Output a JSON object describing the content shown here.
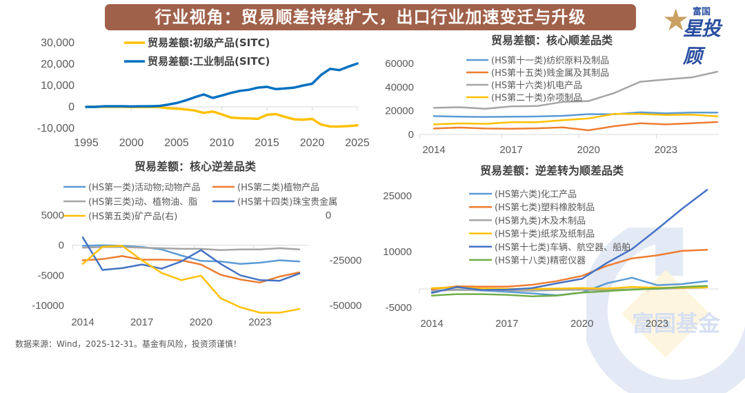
{
  "header": {
    "title": "行业视角：贸易顺差持续扩大，出口行业加速变迁与升级",
    "logo_small": "富国",
    "logo_big": "星投顾",
    "logo_icon": "star-icon"
  },
  "watermark": {
    "text": "富国基金",
    "icon": "fuguo-logo-watermark"
  },
  "footer": {
    "source": "数据来源：Wind，2025-12-31。基金有风险，投资须谨慎！"
  },
  "colors": {
    "banner": "#a0614a",
    "logo_gold": "#c9a063",
    "logo_blue": "#2a4fa0"
  },
  "chart_data": [
    {
      "id": "c1",
      "type": "line",
      "title": "",
      "xlabel": "",
      "ylabel": "",
      "x": [
        1995,
        1996,
        1997,
        1998,
        1999,
        2000,
        2001,
        2002,
        2003,
        2004,
        2005,
        2006,
        2007,
        2008,
        2009,
        2010,
        2011,
        2012,
        2013,
        2014,
        2015,
        2016,
        2017,
        2018,
        2019,
        2020,
        2021,
        2022,
        2023,
        2024,
        2025
      ],
      "xticks": [
        1995,
        2000,
        2005,
        2010,
        2015,
        2020,
        2025
      ],
      "xtick_labels": [
        "1995",
        "2000",
        "2005",
        "2010",
        "2015",
        "2020",
        "2025"
      ],
      "xlim": [
        1995,
        2025.5
      ],
      "ylim": [
        -10000,
        30000
      ],
      "yticks": [
        30000,
        20000,
        10000,
        0,
        -10000
      ],
      "ytick_labels": [
        "30,000",
        "20,000",
        "10,000",
        "0",
        "-10,000"
      ],
      "grid": false,
      "legend": "top-center",
      "series": [
        {
          "name": "贸易差额:初级产品(SITC)",
          "color": "#ffc000",
          "values": [
            0,
            0,
            0,
            0,
            0,
            -100,
            -100,
            -100,
            -100,
            -600,
            -800,
            -1200,
            -1700,
            -2800,
            -2200,
            -3500,
            -5000,
            -5300,
            -5400,
            -5600,
            -3700,
            -3400,
            -4700,
            -5800,
            -6000,
            -5600,
            -8300,
            -9200,
            -9200,
            -9000,
            -8600
          ]
        },
        {
          "name": "贸易差额:工业制品(SITC)",
          "color": "#0070c0",
          "values": [
            0,
            0,
            300,
            300,
            300,
            200,
            300,
            300,
            400,
            1000,
            1800,
            3000,
            4500,
            5800,
            4200,
            5300,
            6500,
            7500,
            8000,
            9000,
            9400,
            8300,
            8600,
            9000,
            10000,
            10800,
            15000,
            17800,
            17200,
            18800,
            20300
          ]
        }
      ]
    },
    {
      "id": "c2",
      "type": "line",
      "title": "贸易差额：核心顺差品类",
      "xlabel": "",
      "ylabel": "",
      "x": [
        2014,
        2015,
        2016,
        2017,
        2018,
        2019,
        2020,
        2021,
        2022,
        2023,
        2024,
        2025
      ],
      "xticks": [
        2014,
        2017,
        2020,
        2023
      ],
      "xtick_labels": [
        "2014",
        "2017",
        "2020",
        "2023"
      ],
      "xlim": [
        2013.9,
        2026
      ],
      "ylim": [
        0,
        60000
      ],
      "yticks": [
        60000,
        40000,
        20000,
        0
      ],
      "ytick_labels": [
        "60000",
        "40000",
        "20000",
        "0"
      ],
      "grid": false,
      "legend": "top-center",
      "series": [
        {
          "name": "(HS第十一类)纺织原料及制品",
          "color": "#5b9bd5",
          "values": [
            15500,
            15000,
            14800,
            15000,
            15200,
            15700,
            17200,
            17000,
            18700,
            17800,
            18500,
            18500
          ]
        },
        {
          "name": "(HS第十五类)贱金属及其制品",
          "color": "#ed7d31",
          "values": [
            5000,
            5800,
            5000,
            4800,
            5200,
            6000,
            3500,
            7000,
            9500,
            8500,
            9500,
            10500
          ]
        },
        {
          "name": "(HS第十六类)机电产品",
          "color": "#a5a5a5",
          "values": [
            22500,
            23000,
            21700,
            23700,
            24000,
            27500,
            28200,
            35000,
            44500,
            46500,
            48200,
            53000
          ]
        },
        {
          "name": "(HS第二十类)杂项制品",
          "color": "#ffc000",
          "values": [
            8500,
            9300,
            9000,
            10300,
            10300,
            12000,
            13500,
            17300,
            17300,
            16500,
            16700,
            15300
          ]
        }
      ]
    },
    {
      "id": "c3",
      "type": "line",
      "title": "贸易差额：核心逆差品类",
      "xlabel": "",
      "ylabel": "",
      "x": [
        2014,
        2015,
        2016,
        2017,
        2018,
        2019,
        2020,
        2021,
        2022,
        2023,
        2024,
        2025
      ],
      "xticks": [
        2014,
        2017,
        2020,
        2023
      ],
      "xtick_labels": [
        "2014",
        "2017",
        "2020",
        "2023"
      ],
      "xlim": [
        2013.8,
        2025.7
      ],
      "ylim": [
        -10000,
        5000
      ],
      "yticks": [
        5000,
        0,
        -5000,
        -10000
      ],
      "ytick_labels": [
        "5000",
        "0",
        "-5000",
        "-10000"
      ],
      "y2lim": [
        -50000,
        0
      ],
      "y2ticks": [
        0,
        -25000,
        -50000
      ],
      "y2tick_labels": [
        "0",
        "-25000",
        "-50000"
      ],
      "grid": false,
      "legend": "top",
      "series": [
        {
          "name": "(HS第一类)活动物;动物产品",
          "color": "#5b9bd5",
          "axis": "left",
          "values": [
            -100,
            0,
            -100,
            -300,
            -700,
            -1700,
            -2600,
            -2700,
            -3100,
            -2900,
            -2500,
            -2700
          ]
        },
        {
          "name": "(HS第二类)植物产品",
          "color": "#ed7d31",
          "axis": "left",
          "values": [
            -2500,
            -2300,
            -1800,
            -2400,
            -2400,
            -2500,
            -3200,
            -4900,
            -5700,
            -6200,
            -5200,
            -4500
          ]
        },
        {
          "name": "(HS第三类)动、植物油、脂",
          "color": "#a5a5a5",
          "axis": "left",
          "values": [
            -400,
            -300,
            -300,
            -400,
            -500,
            -600,
            -600,
            -800,
            -700,
            -700,
            -500,
            -700
          ]
        },
        {
          "name": "(HS第十四类)珠宝贵金属",
          "color": "#4472c4",
          "axis": "left",
          "values": [
            1300,
            -4100,
            -3800,
            -3200,
            -3900,
            -2700,
            -800,
            -3100,
            -5000,
            -5800,
            -5900,
            -4700
          ]
        },
        {
          "name": "(HS第五类)矿产品(右)",
          "color": "#ffc000",
          "axis": "right",
          "values": [
            -27000,
            -17500,
            -17000,
            -25000,
            -32000,
            -36000,
            -33500,
            -46000,
            -51000,
            -54000,
            -54000,
            -52000
          ]
        }
      ]
    },
    {
      "id": "c4",
      "type": "line",
      "title": "贸易差额：逆差转为顺差品类",
      "xlabel": "",
      "ylabel": "",
      "x": [
        2014,
        2015,
        2016,
        2017,
        2018,
        2019,
        2020,
        2021,
        2022,
        2023,
        2024,
        2025
      ],
      "xticks": [
        2014,
        2017,
        2020,
        2023
      ],
      "xtick_labels": [
        "2014",
        "2017",
        "2020",
        "2023"
      ],
      "xlim": [
        2013.95,
        2026
      ],
      "ylim": [
        -5000,
        25000
      ],
      "yticks": [
        25000,
        10000,
        -5000
      ],
      "ytick_labels": [
        "25000",
        "10000",
        "-5000"
      ],
      "grid": false,
      "legend": "top-center",
      "series": [
        {
          "name": "(HS第六类)化工产品",
          "color": "#5b9bd5",
          "values": [
            -600,
            -200,
            -400,
            -800,
            -1200,
            -1700,
            -1000,
            1500,
            3000,
            1000,
            1300,
            2100
          ]
        },
        {
          "name": "(HS第七类)塑料橡胶制品",
          "color": "#ed7d31",
          "values": [
            -100,
            700,
            600,
            600,
            1100,
            2100,
            3500,
            6200,
            8200,
            9000,
            10200,
            10500
          ]
        },
        {
          "name": "(HS第九类)木及木制品",
          "color": "#a5a5a5",
          "values": [
            -500,
            -300,
            -300,
            -400,
            -500,
            -300,
            -200,
            -300,
            -100,
            0,
            200,
            400
          ]
        },
        {
          "name": "(HS第十类)纸浆及纸制品",
          "color": "#ffc000",
          "values": [
            200,
            400,
            100,
            0,
            0,
            100,
            200,
            100,
            500,
            300,
            300,
            400
          ]
        },
        {
          "name": "(HS第十七类)车辆、航空器、船舶",
          "color": "#4472c4",
          "values": [
            -1100,
            500,
            -300,
            -200,
            200,
            1500,
            2700,
            7000,
            10700,
            16000,
            21500,
            26600
          ]
        },
        {
          "name": "(HS第十八类)精密仪器",
          "color": "#70ad47",
          "values": [
            -1800,
            -1400,
            -1400,
            -1600,
            -2000,
            -1800,
            -1000,
            -600,
            -200,
            100,
            500,
            800
          ]
        }
      ]
    }
  ]
}
